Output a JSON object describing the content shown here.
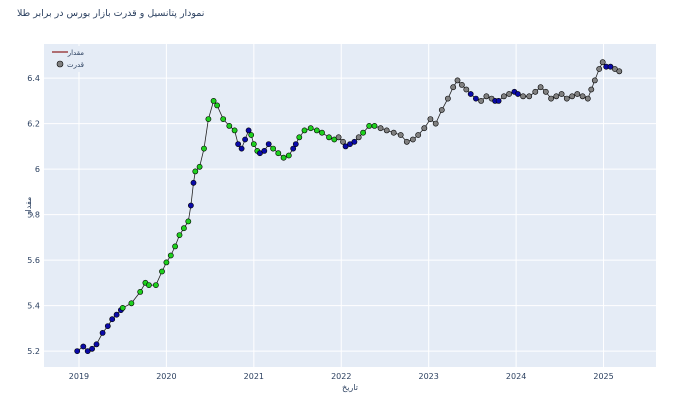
{
  "chart_data": {
    "type": "line",
    "title": "نمودار پتانسیل و قدرت بازار بورس در برابر طلا",
    "xlabel": "تاریخ",
    "ylabel": "مقدار",
    "legend": [
      {
        "label": "مقدار",
        "kind": "line",
        "color": "#8b1a1a"
      },
      {
        "label": "قدرت",
        "kind": "marker",
        "color": "#808080"
      }
    ],
    "legend_position": "top-left",
    "x_ticks": [
      "2019",
      "2020",
      "2021",
      "2022",
      "2023",
      "2024",
      "2025"
    ],
    "xlim": [
      2018.6,
      2025.6
    ],
    "y_ticks": [
      "5.2",
      "5.4",
      "5.6",
      "5.8",
      "6",
      "6.2",
      "6.4"
    ],
    "ylim": [
      5.13,
      6.55
    ],
    "grid": true,
    "strength_colors": {
      "blue": "#0a0aa8",
      "green": "#1ed01e",
      "gray": "#808080"
    },
    "segments": [
      {
        "color": "blue",
        "points": [
          [
            2018.98,
            5.2
          ],
          [
            2019.05,
            5.22
          ],
          [
            2019.1,
            5.2
          ],
          [
            2019.15,
            5.21
          ],
          [
            2019.2,
            5.23
          ],
          [
            2019.27,
            5.28
          ],
          [
            2019.33,
            5.31
          ],
          [
            2019.38,
            5.34
          ],
          [
            2019.43,
            5.36
          ],
          [
            2019.48,
            5.38
          ]
        ]
      },
      {
        "color": "green",
        "points": [
          [
            2019.5,
            5.39
          ],
          [
            2019.6,
            5.41
          ],
          [
            2019.7,
            5.46
          ],
          [
            2019.76,
            5.5
          ],
          [
            2019.8,
            5.49
          ],
          [
            2019.88,
            5.49
          ],
          [
            2019.95,
            5.55
          ],
          [
            2020.0,
            5.59
          ],
          [
            2020.05,
            5.62
          ],
          [
            2020.1,
            5.66
          ],
          [
            2020.15,
            5.71
          ],
          [
            2020.2,
            5.74
          ],
          [
            2020.25,
            5.77
          ]
        ]
      },
      {
        "color": "blue",
        "points": [
          [
            2020.28,
            5.84
          ],
          [
            2020.31,
            5.94
          ]
        ]
      },
      {
        "color": "green",
        "points": [
          [
            2020.33,
            5.99
          ],
          [
            2020.38,
            6.01
          ],
          [
            2020.43,
            6.09
          ],
          [
            2020.48,
            6.22
          ],
          [
            2020.54,
            6.3
          ],
          [
            2020.58,
            6.28
          ],
          [
            2020.65,
            6.22
          ],
          [
            2020.72,
            6.19
          ],
          [
            2020.78,
            6.17
          ]
        ]
      },
      {
        "color": "blue",
        "points": [
          [
            2020.82,
            6.11
          ],
          [
            2020.86,
            6.09
          ],
          [
            2020.9,
            6.13
          ],
          [
            2020.94,
            6.17
          ]
        ]
      },
      {
        "color": "green",
        "points": [
          [
            2020.97,
            6.15
          ],
          [
            2021.0,
            6.11
          ],
          [
            2021.04,
            6.08
          ]
        ]
      },
      {
        "color": "blue",
        "points": [
          [
            2021.07,
            6.07
          ],
          [
            2021.12,
            6.08
          ],
          [
            2021.17,
            6.11
          ]
        ]
      },
      {
        "color": "green",
        "points": [
          [
            2021.22,
            6.09
          ],
          [
            2021.28,
            6.07
          ],
          [
            2021.34,
            6.05
          ],
          [
            2021.4,
            6.06
          ]
        ]
      },
      {
        "color": "blue",
        "points": [
          [
            2021.45,
            6.09
          ],
          [
            2021.48,
            6.11
          ]
        ]
      },
      {
        "color": "green",
        "points": [
          [
            2021.52,
            6.14
          ],
          [
            2021.58,
            6.17
          ],
          [
            2021.65,
            6.18
          ],
          [
            2021.72,
            6.17
          ],
          [
            2021.78,
            6.16
          ],
          [
            2021.86,
            6.14
          ],
          [
            2021.92,
            6.13
          ]
        ]
      },
      {
        "color": "gray",
        "points": [
          [
            2021.97,
            6.14
          ],
          [
            2022.02,
            6.12
          ]
        ]
      },
      {
        "color": "blue",
        "points": [
          [
            2022.05,
            6.1
          ],
          [
            2022.1,
            6.11
          ],
          [
            2022.15,
            6.12
          ]
        ]
      },
      {
        "color": "gray",
        "points": [
          [
            2022.2,
            6.14
          ]
        ]
      },
      {
        "color": "green",
        "points": [
          [
            2022.25,
            6.16
          ],
          [
            2022.32,
            6.19
          ],
          [
            2022.38,
            6.19
          ]
        ]
      },
      {
        "color": "gray",
        "points": [
          [
            2022.45,
            6.18
          ],
          [
            2022.52,
            6.17
          ],
          [
            2022.6,
            6.16
          ],
          [
            2022.68,
            6.15
          ],
          [
            2022.75,
            6.12
          ],
          [
            2022.82,
            6.13
          ],
          [
            2022.88,
            6.15
          ],
          [
            2022.95,
            6.18
          ],
          [
            2023.02,
            6.22
          ],
          [
            2023.08,
            6.2
          ],
          [
            2023.15,
            6.26
          ],
          [
            2023.22,
            6.31
          ],
          [
            2023.28,
            6.36
          ],
          [
            2023.33,
            6.39
          ],
          [
            2023.38,
            6.37
          ],
          [
            2023.43,
            6.35
          ]
        ]
      },
      {
        "color": "blue",
        "points": [
          [
            2023.48,
            6.33
          ],
          [
            2023.54,
            6.31
          ]
        ]
      },
      {
        "color": "gray",
        "points": [
          [
            2023.6,
            6.3
          ],
          [
            2023.66,
            6.32
          ],
          [
            2023.72,
            6.31
          ]
        ]
      },
      {
        "color": "blue",
        "points": [
          [
            2023.76,
            6.3
          ],
          [
            2023.8,
            6.3
          ]
        ]
      },
      {
        "color": "gray",
        "points": [
          [
            2023.86,
            6.32
          ],
          [
            2023.92,
            6.33
          ]
        ]
      },
      {
        "color": "blue",
        "points": [
          [
            2023.98,
            6.34
          ],
          [
            2024.02,
            6.33
          ]
        ]
      },
      {
        "color": "gray",
        "points": [
          [
            2024.08,
            6.32
          ],
          [
            2024.15,
            6.32
          ],
          [
            2024.22,
            6.34
          ],
          [
            2024.28,
            6.36
          ],
          [
            2024.34,
            6.34
          ],
          [
            2024.4,
            6.31
          ],
          [
            2024.46,
            6.32
          ],
          [
            2024.52,
            6.33
          ],
          [
            2024.58,
            6.31
          ],
          [
            2024.64,
            6.32
          ],
          [
            2024.7,
            6.33
          ],
          [
            2024.76,
            6.32
          ],
          [
            2024.82,
            6.31
          ],
          [
            2024.86,
            6.35
          ],
          [
            2024.9,
            6.39
          ],
          [
            2024.95,
            6.44
          ],
          [
            2024.99,
            6.47
          ]
        ]
      },
      {
        "color": "blue",
        "points": [
          [
            2025.03,
            6.45
          ],
          [
            2025.08,
            6.45
          ]
        ]
      },
      {
        "color": "gray",
        "points": [
          [
            2025.13,
            6.44
          ],
          [
            2025.18,
            6.43
          ]
        ]
      }
    ]
  }
}
